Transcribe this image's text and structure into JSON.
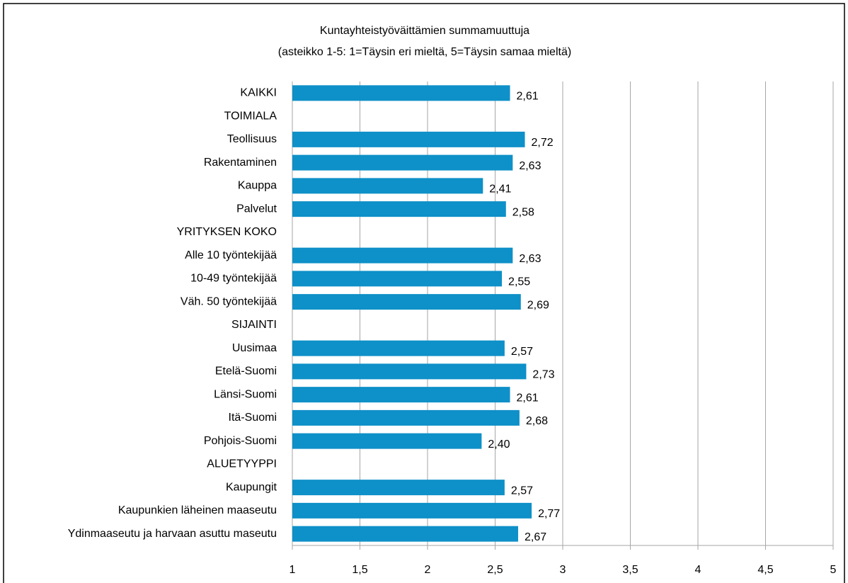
{
  "chart_data": {
    "type": "bar",
    "orientation": "horizontal",
    "title": "Kuntayhteistyöväittämien summamuuttuja",
    "subtitle": "(asteikko 1-5: 1=Täysin eri mieltä, 5=Täysin samaa mieltä)",
    "categories": [
      "KAIKKI",
      "TOIMIALA",
      "Teollisuus",
      "Rakentaminen",
      "Kauppa",
      "Palvelut",
      "YRITYKSEN KOKO",
      "Alle 10 työntekijää",
      "10-49 työntekijää",
      "Väh. 50 työntekijää",
      "SIJAINTI",
      "Uusimaa",
      "Etelä-Suomi",
      "Länsi-Suomi",
      "Itä-Suomi",
      "Pohjois-Suomi",
      "ALUETYYPPI",
      "Kaupungit",
      "Kaupunkien läheinen maaseutu",
      "Ydinmaaseutu ja harvaan asuttu maseutu"
    ],
    "values": [
      2.61,
      null,
      2.72,
      2.63,
      2.41,
      2.58,
      null,
      2.63,
      2.55,
      2.69,
      null,
      2.57,
      2.73,
      2.61,
      2.68,
      2.4,
      null,
      2.57,
      2.77,
      2.67
    ],
    "value_labels": [
      "2,61",
      null,
      "2,72",
      "2,63",
      "2,41",
      "2,58",
      null,
      "2,63",
      "2,55",
      "2,69",
      null,
      "2,57",
      "2,73",
      "2,61",
      "2,68",
      "2,40",
      null,
      "2,57",
      "2,77",
      "2,67"
    ],
    "color": "#0e90c8",
    "xlim": [
      1,
      5
    ],
    "xticks": [
      1,
      {
        "value": 1.5,
        "label": "1,5"
      },
      2,
      {
        "value": 2.5,
        "label": "2,5"
      },
      3,
      {
        "value": 3.5,
        "label": "3,5"
      },
      4,
      {
        "value": 4.5,
        "label": "4,5"
      },
      5
    ],
    "grid": true
  }
}
